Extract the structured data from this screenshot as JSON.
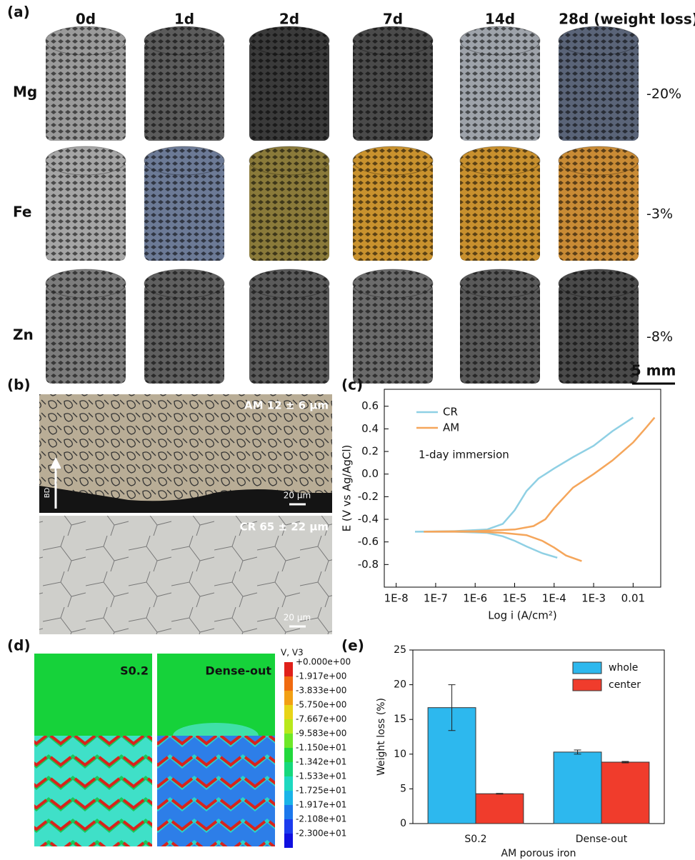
{
  "panel_a": {
    "label": "(a)",
    "columns": [
      "0d",
      "1d",
      "2d",
      "7d",
      "14d",
      "28d (weight loss)"
    ],
    "rows": [
      {
        "name": "Mg",
        "weight_loss": "-20%"
      },
      {
        "name": "Fe",
        "weight_loss": "-3%"
      },
      {
        "name": "Zn",
        "weight_loss": "-8%"
      }
    ],
    "scale_bar": "5 mm"
  },
  "panel_b": {
    "label": "(b)",
    "top_label": "AM 12 ± 6 µm",
    "build_direction": "BD",
    "top_scale": "20 µm",
    "bottom_label": "CR 65 ± 22 µm",
    "bottom_scale": "20 µm"
  },
  "panel_c": {
    "label": "(c)"
  },
  "panel_d": {
    "label": "(d)",
    "left_label": "S0.2",
    "right_label": "Dense-out",
    "colorbar_title": "V, V3",
    "colorbar_labels": [
      "+0.000e+00",
      "-1.917e+00",
      "-3.833e+00",
      "-5.750e+00",
      "-7.667e+00",
      "-9.583e+00",
      "-1.150e+01",
      "-1.342e+01",
      "-1.533e+01",
      "-1.725e+01",
      "-1.917e+01",
      "-2.108e+01",
      "-2.300e+01"
    ]
  },
  "panel_e": {
    "label": "(e)"
  },
  "chart_data": [
    {
      "type": "line",
      "xlabel": "Log i (A/cm²)",
      "ylabel": "E (V vs Ag/AgCl)",
      "annotation": "1-day immersion",
      "xscale": "log",
      "xlim": [
        5e-09,
        0.05
      ],
      "ylim": [
        -1.0,
        0.75
      ],
      "xticks": [
        {
          "value": 1e-08,
          "label": "1E-8"
        },
        {
          "value": 1e-07,
          "label": "1E-7"
        },
        {
          "value": 1e-06,
          "label": "1E-6"
        },
        {
          "value": 1e-05,
          "label": "1E-5"
        },
        {
          "value": 0.0001,
          "label": "1E-4"
        },
        {
          "value": 0.001,
          "label": "1E-3"
        },
        0.01
      ],
      "yticks": [
        -0.8,
        -0.6,
        -0.4,
        -0.2,
        {
          "value": 0,
          "label": "0.0"
        },
        0.2,
        0.4,
        0.6
      ],
      "legend": "upper left",
      "series": [
        {
          "name": "CR",
          "color": "#8fd0e4",
          "x": [
            0.00012,
            5e-05,
            2e-05,
            1e-05,
            5e-06,
            2e-06,
            3e-07,
            3e-08,
            3e-07,
            2e-06,
            5e-06,
            1e-05,
            2e-05,
            4e-05,
            0.0001,
            0.0003,
            0.001,
            0.003,
            0.01
          ],
          "values": [
            -0.74,
            -0.7,
            -0.64,
            -0.59,
            -0.55,
            -0.52,
            -0.51,
            -0.51,
            -0.505,
            -0.49,
            -0.44,
            -0.32,
            -0.15,
            -0.04,
            0.05,
            0.15,
            0.25,
            0.38,
            0.5
          ]
        },
        {
          "name": "AM",
          "color": "#f5a65b",
          "x": [
            0.0005,
            0.0002,
            0.0001,
            5e-05,
            2e-05,
            5e-06,
            1e-06,
            5e-08,
            1e-06,
            1e-05,
            3e-05,
            6e-05,
            0.0001,
            0.0003,
            0.001,
            0.003,
            0.01,
            0.02,
            0.035
          ],
          "values": [
            -0.77,
            -0.72,
            -0.65,
            -0.59,
            -0.54,
            -0.52,
            -0.51,
            -0.51,
            -0.505,
            -0.49,
            -0.46,
            -0.4,
            -0.3,
            -0.12,
            0.0,
            0.12,
            0.28,
            0.4,
            0.5
          ]
        }
      ]
    },
    {
      "type": "bar",
      "ylabel": "Weight loss (%)",
      "xlabel": "AM porous iron",
      "categories": [
        "S0.2",
        "Dense-out"
      ],
      "ylim": [
        0,
        25
      ],
      "yticks": [
        0,
        5,
        10,
        15,
        20,
        25
      ],
      "legend": "upper right",
      "series": [
        {
          "name": "whole",
          "color": "#2db8ee",
          "values": [
            16.7,
            10.3
          ],
          "errors": [
            3.3,
            0.3
          ]
        },
        {
          "name": "center",
          "color": "#f03c2c",
          "values": [
            4.3,
            8.85
          ],
          "errors": [
            0.05,
            0.1
          ]
        }
      ]
    }
  ]
}
